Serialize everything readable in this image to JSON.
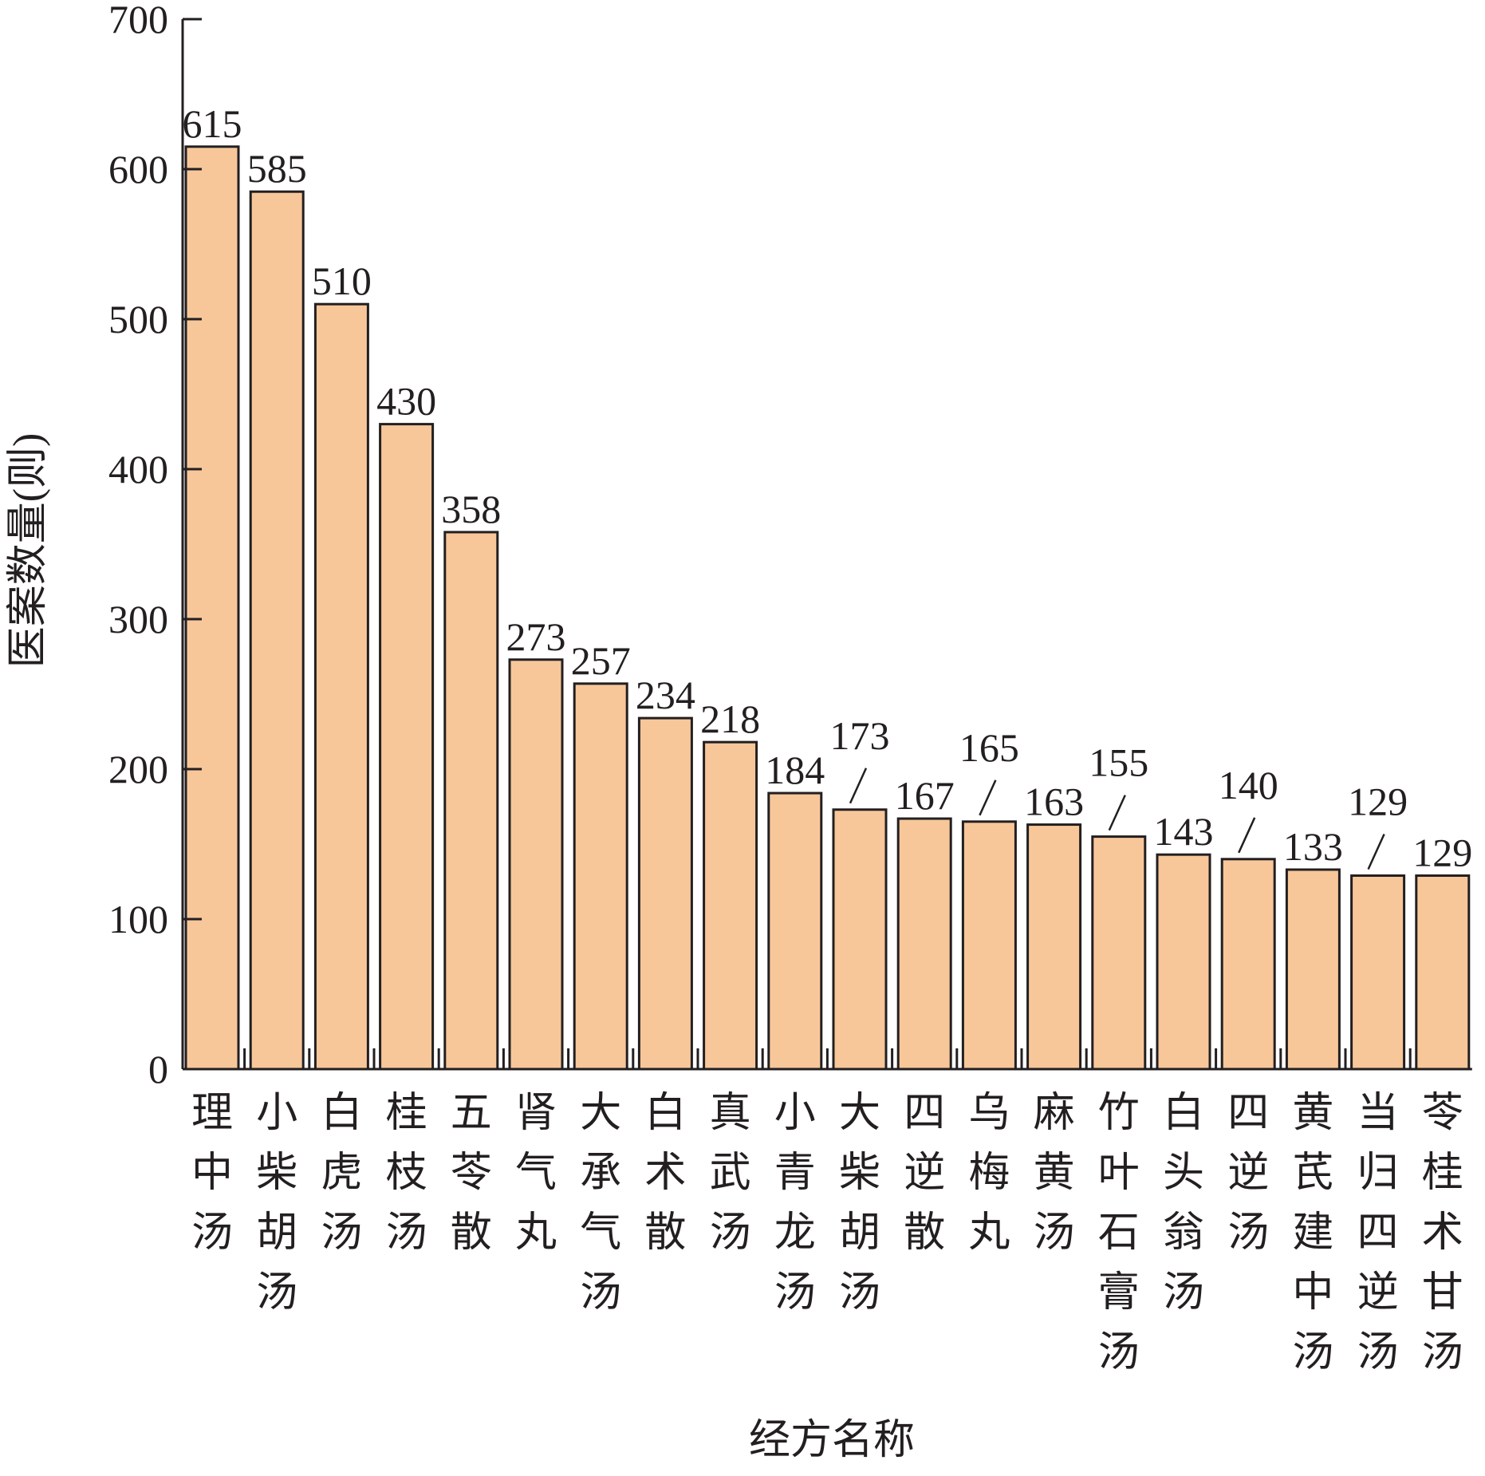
{
  "chart_data": {
    "type": "bar",
    "title": "",
    "xlabel": "经方名称",
    "ylabel": "医案数量(则)",
    "ylim": [
      0,
      700
    ],
    "yticks": [
      0,
      100,
      200,
      300,
      400,
      500,
      600,
      700
    ],
    "grid": false,
    "legend": "none",
    "bar_color": "#f7c79a",
    "categories": [
      "理中汤",
      "小柴胡汤",
      "白虎汤",
      "桂枝汤",
      "五苓散",
      "肾气丸",
      "大承气汤",
      "白术散",
      "真武汤",
      "小青龙汤",
      "大柴胡汤",
      "四逆散",
      "乌梅丸",
      "麻黄汤",
      "竹叶石膏汤",
      "白头翁汤",
      "四逆汤",
      "黄芪建中汤",
      "当归四逆汤",
      "苓桂术甘汤"
    ],
    "values": [
      615,
      585,
      510,
      430,
      358,
      273,
      257,
      234,
      218,
      184,
      173,
      167,
      165,
      163,
      155,
      143,
      140,
      133,
      129,
      129
    ],
    "leader_line_labels": [
      10,
      12,
      14,
      16,
      18
    ]
  }
}
